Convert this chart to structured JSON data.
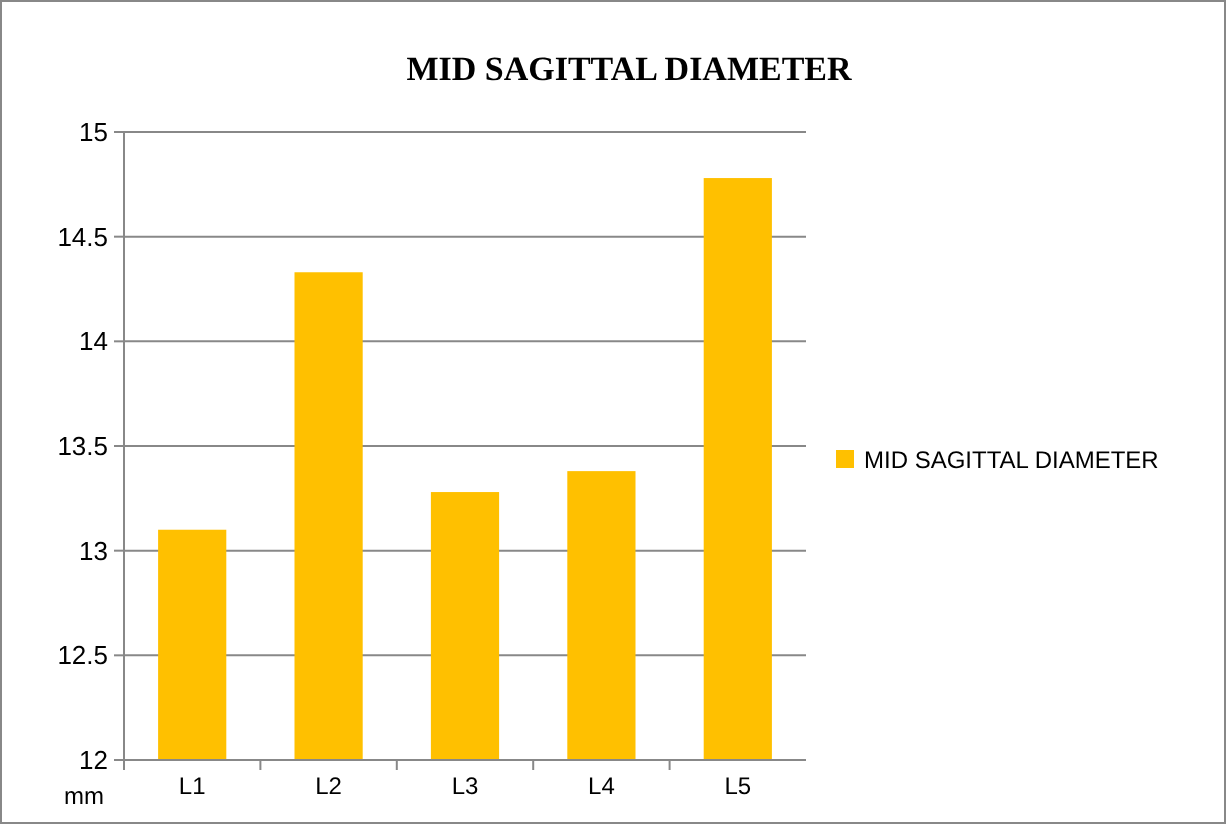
{
  "chart_data": {
    "type": "bar",
    "title": "MID SAGITTAL DIAMETER",
    "ylabel": "mm",
    "categories": [
      "L1",
      "L2",
      "L3",
      "L4",
      "L5"
    ],
    "series": [
      {
        "name": "MID SAGITTAL DIAMETER",
        "color": "#ffc000",
        "values": [
          13.1,
          14.33,
          13.28,
          13.38,
          14.78
        ]
      }
    ],
    "ylim": [
      12,
      15
    ],
    "yticks": [
      12,
      12.5,
      13,
      13.5,
      14,
      14.5,
      15
    ],
    "grid": "y",
    "legend": "right"
  }
}
